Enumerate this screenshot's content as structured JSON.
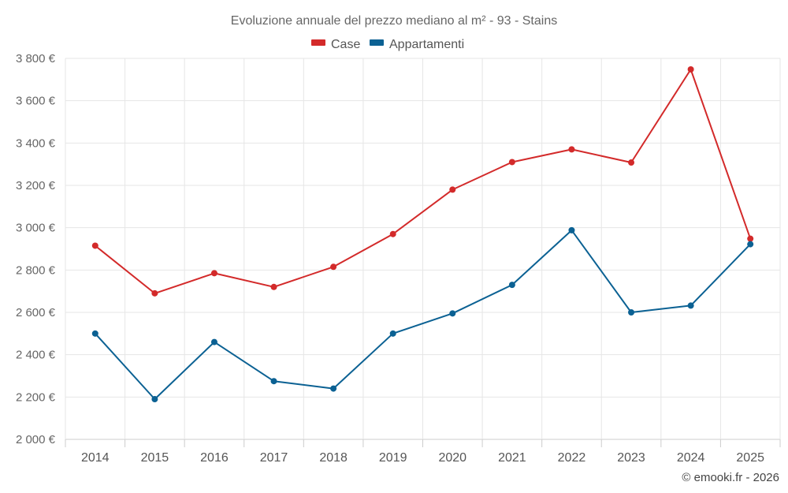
{
  "chart_data": {
    "type": "line",
    "title": "Evoluzione annuale del prezzo mediano al m² - 93 - Stains",
    "categories": [
      "2014",
      "2015",
      "2016",
      "2017",
      "2018",
      "2019",
      "2020",
      "2021",
      "2022",
      "2023",
      "2024",
      "2025"
    ],
    "series": [
      {
        "name": "Case",
        "color": "#d32a2a",
        "values": [
          2915,
          2690,
          2785,
          2720,
          2815,
          2970,
          3180,
          3310,
          3370,
          3308,
          3748,
          2948
        ]
      },
      {
        "name": "Appartamenti",
        "color": "#0b6193",
        "values": [
          2500,
          2190,
          2460,
          2275,
          2240,
          2500,
          2595,
          2730,
          2988,
          2600,
          2632,
          2922
        ]
      }
    ],
    "ylim": [
      2000,
      3800
    ],
    "yticks": [
      2000,
      2200,
      2400,
      2600,
      2800,
      3000,
      3200,
      3400,
      3600,
      3800
    ],
    "ytick_labels": [
      "2 000 €",
      "2 200 €",
      "2 400 €",
      "2 600 €",
      "2 800 €",
      "3 000 €",
      "3 200 €",
      "3 400 €",
      "3 600 €",
      "3 800 €"
    ],
    "grid": true,
    "legend_position": "top-center"
  },
  "credit": "© emooki.fr - 2026"
}
